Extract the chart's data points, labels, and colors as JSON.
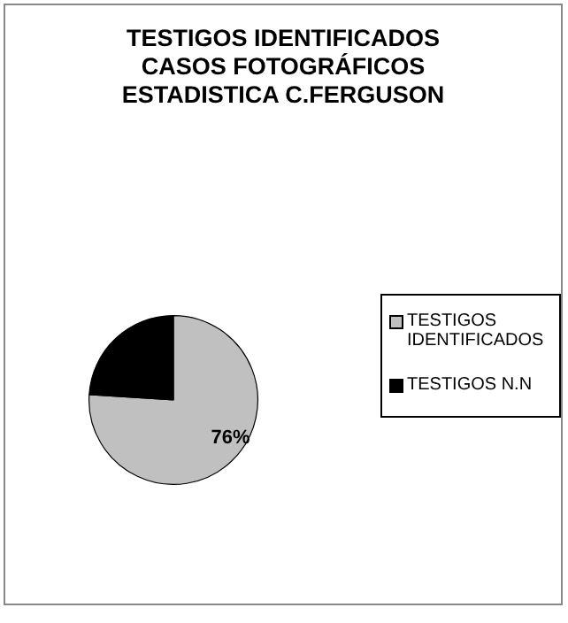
{
  "chart_data": {
    "type": "pie",
    "title": "TESTIGOS IDENTIFICADOS\nCASOS FOTOGRÁFICOS\nESTADISTICA  C.FERGUSON",
    "categories": [
      "TESTIGOS IDENTIFICADOS",
      "TESTIGOS N.N"
    ],
    "values": [
      76,
      24
    ],
    "colors": [
      "#c0c0c0",
      "#000000"
    ],
    "value_labels": [
      "76%",
      null
    ],
    "legend": "right"
  }
}
